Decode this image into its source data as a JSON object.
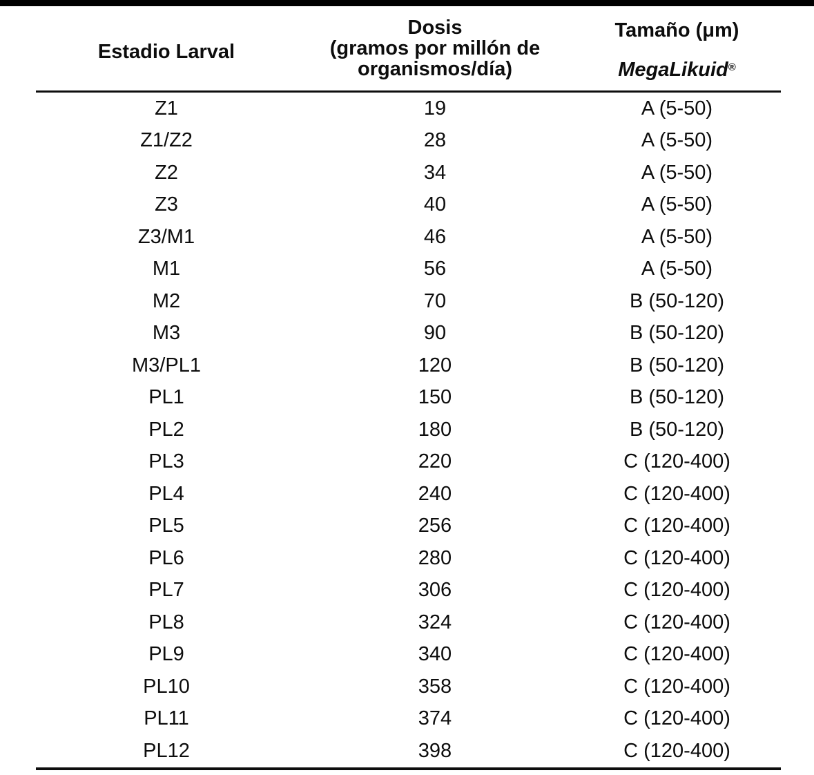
{
  "page": {
    "background_color": "#ffffff",
    "text_color": "#0d0d0d",
    "top_bar_color": "#000000"
  },
  "table": {
    "header": {
      "col1": "Estadio Larval",
      "col2_line1": "Dosis",
      "col2_line2": "(gramos por millón de",
      "col2_line3": "organismos/día)",
      "col3_line1": "Tamaño (μm)",
      "col3_brand": "MegaLikuid",
      "col3_reg": "®"
    },
    "rows": [
      {
        "stage": "Z1",
        "dose": "19",
        "size": "A (5-50)"
      },
      {
        "stage": "Z1/Z2",
        "dose": "28",
        "size": "A (5-50)"
      },
      {
        "stage": "Z2",
        "dose": "34",
        "size": "A (5-50)"
      },
      {
        "stage": "Z3",
        "dose": "40",
        "size": "A (5-50)"
      },
      {
        "stage": "Z3/M1",
        "dose": "46",
        "size": "A (5-50)"
      },
      {
        "stage": "M1",
        "dose": "56",
        "size": "A (5-50)"
      },
      {
        "stage": "M2",
        "dose": "70",
        "size": "B (50-120)"
      },
      {
        "stage": "M3",
        "dose": "90",
        "size": "B (50-120)"
      },
      {
        "stage": "M3/PL1",
        "dose": "120",
        "size": "B (50-120)"
      },
      {
        "stage": "PL1",
        "dose": "150",
        "size": "B (50-120)"
      },
      {
        "stage": "PL2",
        "dose": "180",
        "size": "B (50-120)"
      },
      {
        "stage": "PL3",
        "dose": "220",
        "size": "C (120-400)"
      },
      {
        "stage": "PL4",
        "dose": "240",
        "size": "C (120-400)"
      },
      {
        "stage": "PL5",
        "dose": "256",
        "size": "C (120-400)"
      },
      {
        "stage": "PL6",
        "dose": "280",
        "size": "C (120-400)"
      },
      {
        "stage": "PL7",
        "dose": "306",
        "size": "C (120-400)"
      },
      {
        "stage": "PL8",
        "dose": "324",
        "size": "C (120-400)"
      },
      {
        "stage": "PL9",
        "dose": "340",
        "size": "C (120-400)"
      },
      {
        "stage": "PL10",
        "dose": "358",
        "size": "C (120-400)"
      },
      {
        "stage": "PL11",
        "dose": "374",
        "size": "C (120-400)"
      },
      {
        "stage": "PL12",
        "dose": "398",
        "size": "C (120-400)"
      }
    ]
  }
}
